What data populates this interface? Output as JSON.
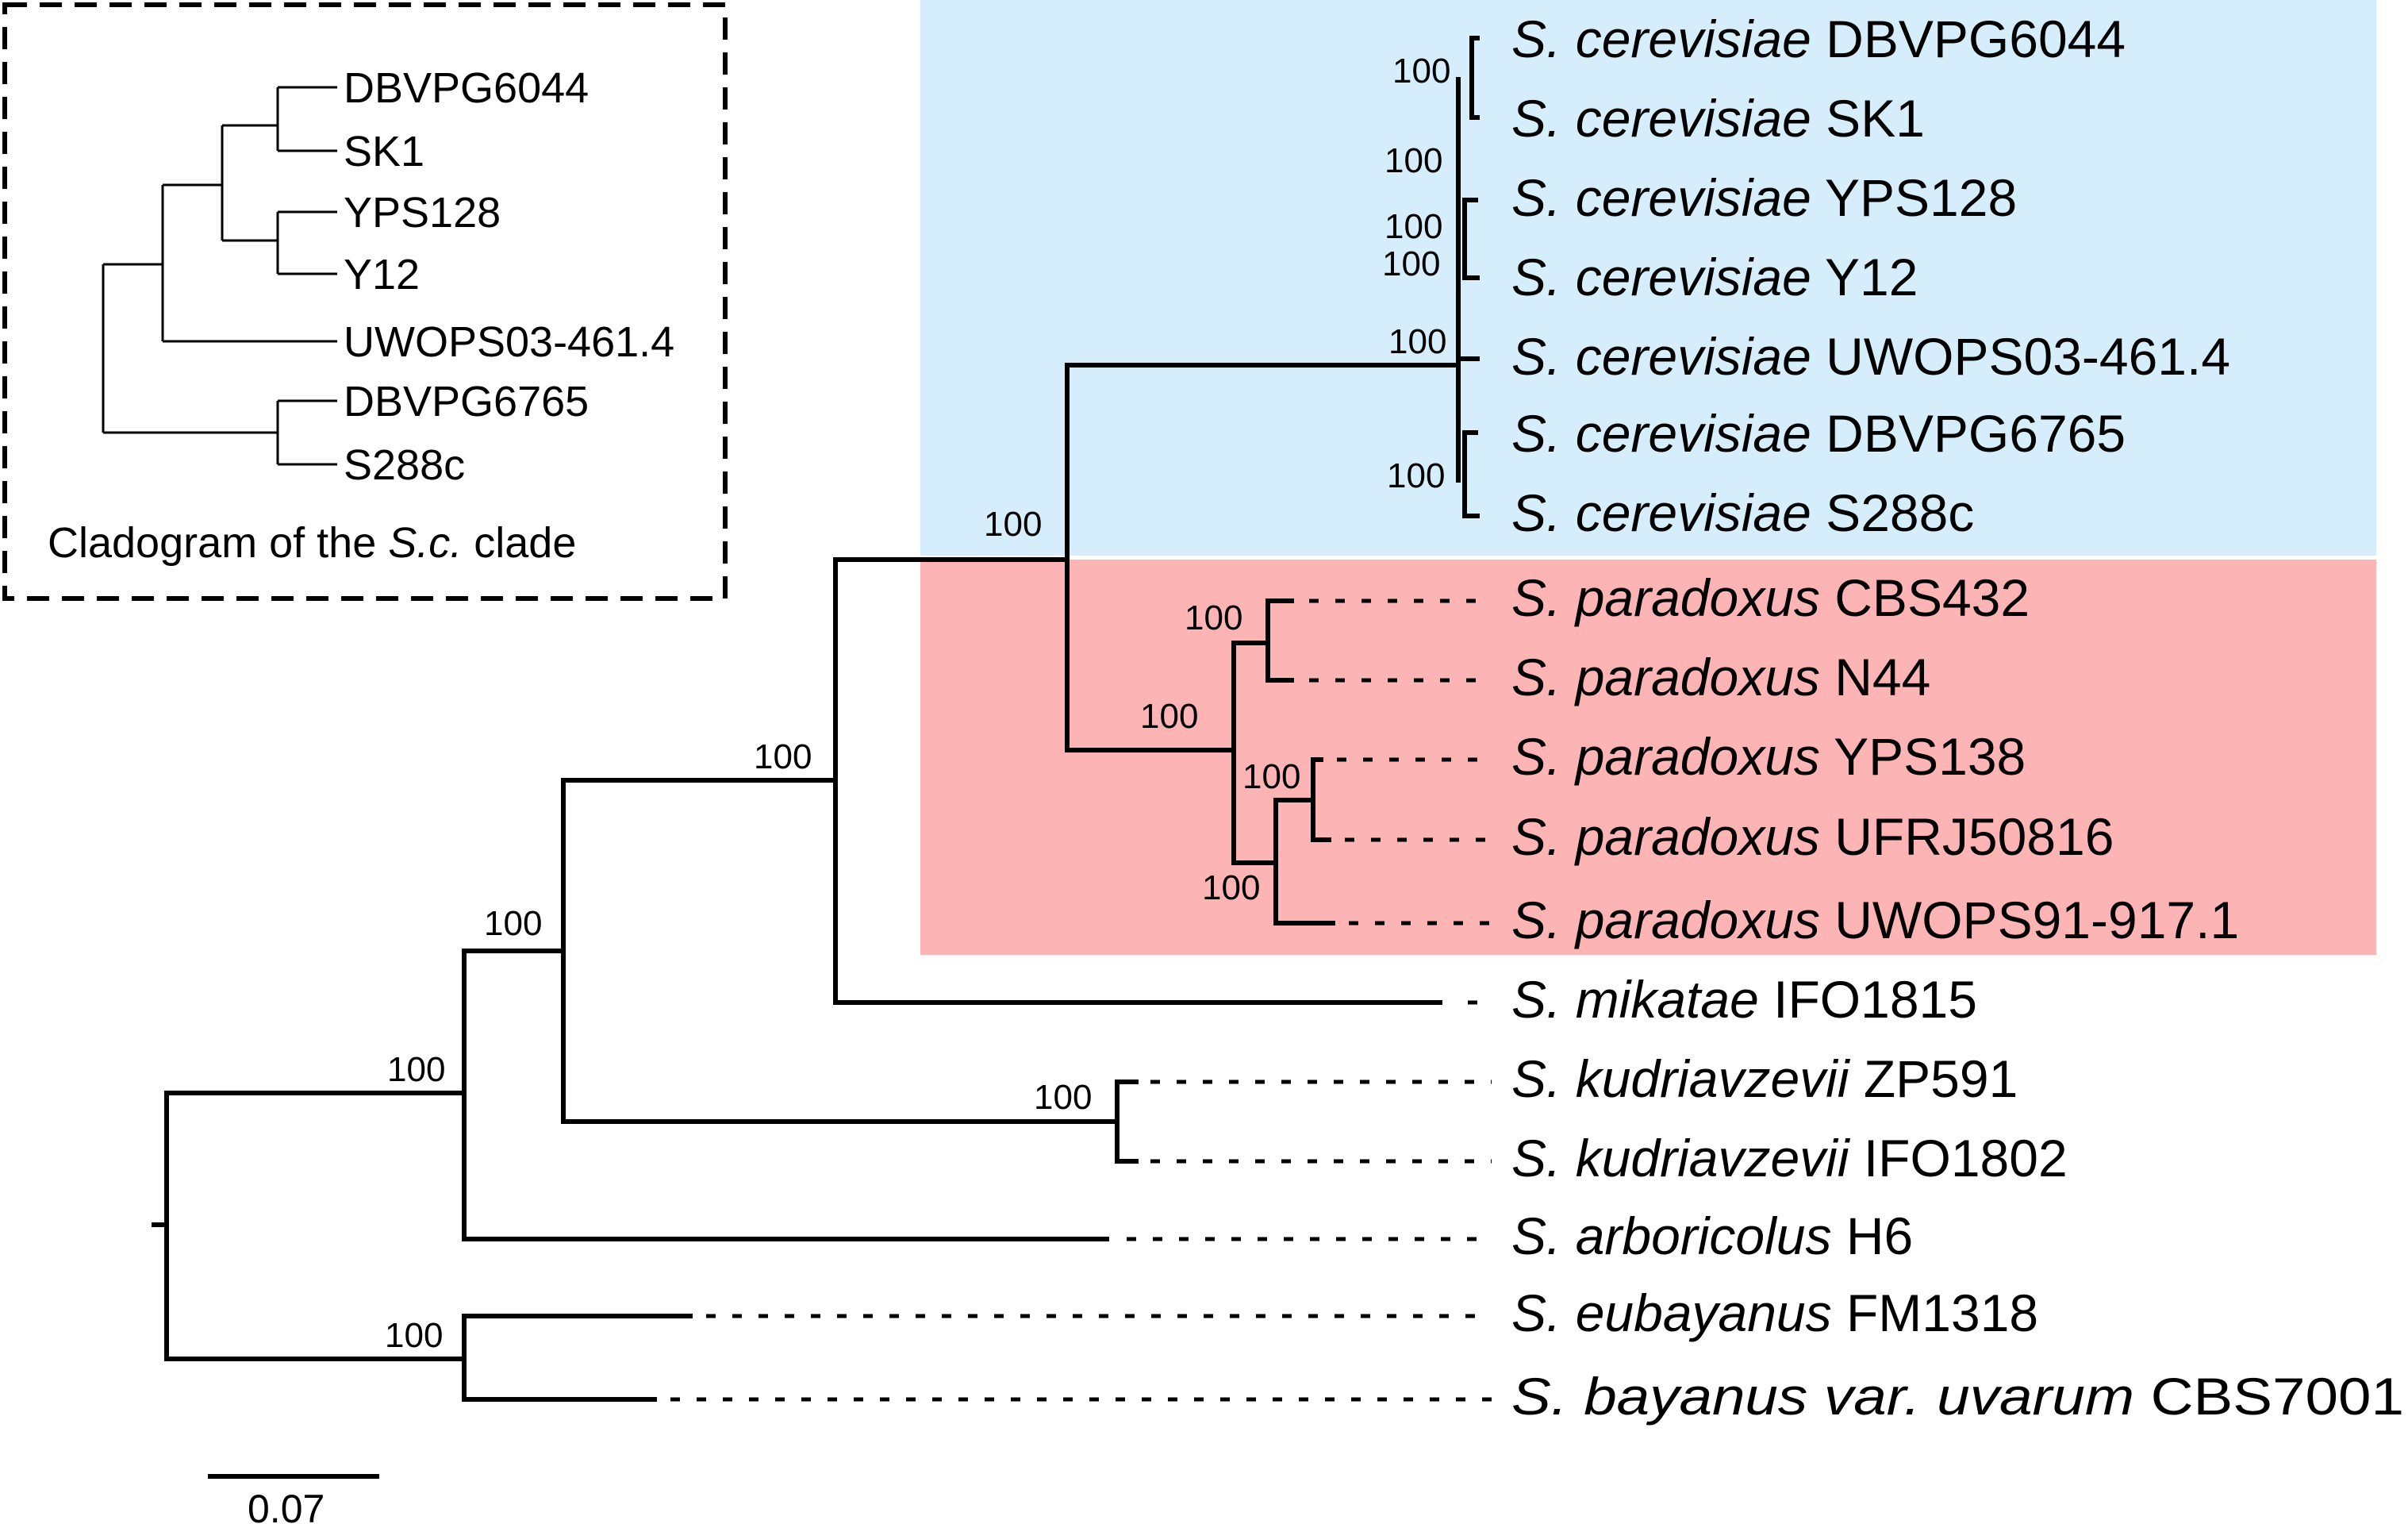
{
  "colors": {
    "cerevisiae_clade_bg": "#d6eefc",
    "paradoxus_clade_bg": "#fdb4b4",
    "branch": "#000000"
  },
  "taxa": [
    {
      "species": "S. cerevisiae",
      "strain": "DBVPG6044"
    },
    {
      "species": "S. cerevisiae",
      "strain": "SK1"
    },
    {
      "species": "S. cerevisiae",
      "strain": "YPS128"
    },
    {
      "species": "S. cerevisiae",
      "strain": "Y12"
    },
    {
      "species": "S. cerevisiae",
      "strain": "UWOPS03-461.4"
    },
    {
      "species": "S. cerevisiae",
      "strain": "DBVPG6765"
    },
    {
      "species": "S. cerevisiae",
      "strain": "S288c"
    },
    {
      "species": "S. paradoxus",
      "strain": "CBS432"
    },
    {
      "species": "S. paradoxus",
      "strain": "N44"
    },
    {
      "species": "S. paradoxus",
      "strain": "YPS138"
    },
    {
      "species": "S. paradoxus",
      "strain": "UFRJ50816"
    },
    {
      "species": "S. paradoxus",
      "strain": "UWOPS91-917.1"
    },
    {
      "species": "S. mikatae",
      "strain": "IFO1815"
    },
    {
      "species": "S. kudriavzevii",
      "strain": "ZP591"
    },
    {
      "species": "S. kudriavzevii",
      "strain": "IFO1802"
    },
    {
      "species": "S. arboricolus",
      "strain": "H6"
    },
    {
      "species": "S. eubayanus",
      "strain": "FM1318"
    },
    {
      "species": "S. bayanus var. uvarum",
      "strain": "CBS7001"
    }
  ],
  "support_values": {
    "sc_dbvpg6044_sk1": "100",
    "sc_ypsy12_group": "100",
    "sc_yps128_y12": "100",
    "sc_y12": "100",
    "sc_uwops": "100",
    "sc_dbvpg6765_s288c": "100",
    "sc_sp": "100",
    "sp_cbs432_n44": "100",
    "sp_clade": "100",
    "sp_yps138_ufrj": "100",
    "sp_subclade": "100",
    "sc_sp_mik": "100",
    "sc_sp_mik_kud": "100",
    "sc_sp_mik_kud_arb": "100",
    "eub_bay": "100"
  },
  "scale_bar": {
    "value": "0.07"
  },
  "inset": {
    "leaves": [
      "DBVPG6044",
      "SK1",
      "YPS128",
      "Y12",
      "UWOPS03-461.4",
      "DBVPG6765",
      "S288c"
    ],
    "caption_prefix": "Cladogram of the ",
    "caption_italic": "S.c.",
    "caption_suffix": " clade"
  }
}
